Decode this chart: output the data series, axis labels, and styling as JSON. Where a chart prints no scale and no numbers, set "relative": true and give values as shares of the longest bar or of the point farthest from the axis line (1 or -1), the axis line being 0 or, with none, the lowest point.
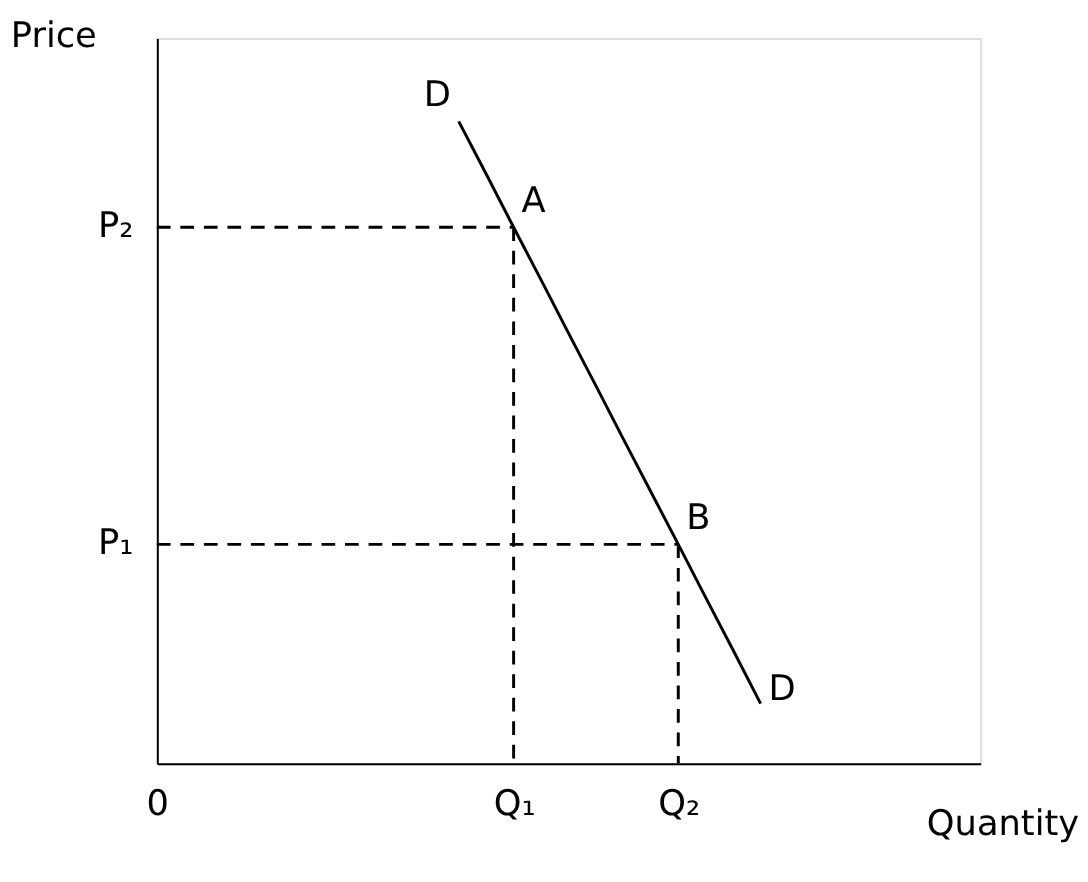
{
  "chart_data": {
    "type": "line",
    "relative": true,
    "xlabel": "Quantity",
    "ylabel": "Price",
    "grid": false,
    "marker": "none",
    "categories": [
      "0",
      null,
      null,
      null,
      null,
      null,
      null,
      null,
      null,
      null,
      null,
      null,
      null,
      "Q₁",
      null,
      null,
      null,
      null,
      null,
      "Q₂",
      null,
      null,
      null,
      null,
      null,
      null,
      null,
      null,
      null,
      null,
      null
    ],
    "series": [
      {
        "name": "D",
        "color": "#000000",
        "line_style": "solid",
        "values": [
          null,
          null,
          null,
          null,
          null,
          null,
          null,
          null,
          null,
          null,
          null,
          1.0,
          0.918,
          0.835,
          0.753,
          0.67,
          0.588,
          0.505,
          0.423,
          0.341,
          0.258,
          0.176,
          0.093,
          null,
          null,
          null,
          null,
          null,
          null,
          null,
          null
        ]
      },
      {
        "color": "#000000",
        "line_style": "dashed",
        "x": [
          "0",
          "Q₁"
        ],
        "values": [
          0.835,
          0.835
        ]
      },
      {
        "color": "#000000",
        "line_style": "dashed",
        "x": [
          "Q₁",
          "Q₁"
        ],
        "values": [
          0.835,
          0
        ]
      },
      {
        "color": "#000000",
        "line_style": "dashed",
        "x": [
          "0",
          "Q₂"
        ],
        "values": [
          0.341,
          0.341
        ]
      },
      {
        "color": "#000000",
        "line_style": "dashed",
        "x": [
          "Q₂",
          "Q₂"
        ],
        "values": [
          0.341,
          0
        ]
      }
    ],
    "annotations": [
      {
        "text": "A",
        "x": "Q₁",
        "y": 0.835
      },
      {
        "text": "B",
        "x": "Q₂",
        "y": 0.341
      },
      {
        "text": "P₂",
        "x": "0",
        "y": 0.835
      },
      {
        "text": "P₁",
        "x": "0",
        "y": 0.341
      }
    ]
  }
}
